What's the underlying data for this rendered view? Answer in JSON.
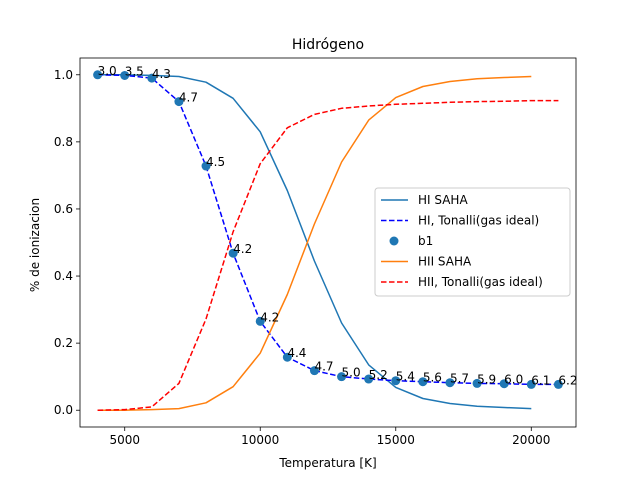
{
  "chart_data": {
    "type": "line",
    "title": "Hidrógeno",
    "xlabel": "Temperatura [K]",
    "ylabel": "% de ionizacion",
    "xlim": [
      3350,
      21650
    ],
    "ylim": [
      -0.05,
      1.05
    ],
    "xticks": [
      5000,
      10000,
      15000,
      20000
    ],
    "xtick_labels": [
      "5000",
      "10000",
      "15000",
      "20000"
    ],
    "yticks": [
      0.0,
      0.2,
      0.4,
      0.6,
      0.8,
      1.0
    ],
    "ytick_labels": [
      "0.0",
      "0.2",
      "0.4",
      "0.6",
      "0.8",
      "1.0"
    ],
    "grid": false,
    "legend_position": "center-right",
    "series": [
      {
        "name": "HI SAHA",
        "kind": "line",
        "color": "#1f77b4",
        "dash": "solid",
        "x": [
          4000,
          5000,
          6000,
          7000,
          8000,
          9000,
          10000,
          11000,
          12000,
          13000,
          14000,
          15000,
          16000,
          17000,
          18000,
          19000,
          20000
        ],
        "y": [
          1.0,
          1.0,
          0.998,
          0.995,
          0.978,
          0.93,
          0.83,
          0.655,
          0.445,
          0.26,
          0.135,
          0.068,
          0.035,
          0.02,
          0.012,
          0.008,
          0.005
        ]
      },
      {
        "name": "HI, Tonalli(gas ideal)",
        "kind": "line",
        "color": "#0000ff",
        "dash": "dashed",
        "x": [
          4000,
          5000,
          6000,
          7000,
          8000,
          9000,
          10000,
          11000,
          12000,
          13000,
          14000,
          15000,
          16000,
          17000,
          18000,
          19000,
          20000,
          21000
        ],
        "y": [
          1.0,
          0.998,
          0.99,
          0.92,
          0.728,
          0.468,
          0.265,
          0.158,
          0.118,
          0.1,
          0.093,
          0.088,
          0.085,
          0.082,
          0.08,
          0.079,
          0.077,
          0.077
        ]
      },
      {
        "name": "b1",
        "kind": "scatter",
        "color": "#1f77b4",
        "x": [
          4000,
          5000,
          6000,
          7000,
          8000,
          9000,
          10000,
          11000,
          12000,
          13000,
          14000,
          15000,
          16000,
          17000,
          18000,
          19000,
          20000,
          21000
        ],
        "y": [
          1.0,
          0.998,
          0.99,
          0.92,
          0.728,
          0.468,
          0.265,
          0.158,
          0.118,
          0.1,
          0.093,
          0.088,
          0.085,
          0.082,
          0.08,
          0.079,
          0.077,
          0.077
        ],
        "labels": [
          "3.0",
          "3.5",
          "4.3",
          "4.7",
          "4.5",
          "4.2",
          "4.2",
          "4.4",
          "4.7",
          "5.0",
          "5.2",
          "5.4",
          "5.6",
          "5.7",
          "5.9",
          "6.0",
          "6.1",
          "6.2"
        ]
      },
      {
        "name": "HII SAHA",
        "kind": "line",
        "color": "#ff7f0e",
        "dash": "solid",
        "x": [
          4000,
          5000,
          6000,
          7000,
          8000,
          9000,
          10000,
          11000,
          12000,
          13000,
          14000,
          15000,
          16000,
          17000,
          18000,
          19000,
          20000
        ],
        "y": [
          0.0,
          0.0,
          0.002,
          0.005,
          0.022,
          0.07,
          0.17,
          0.345,
          0.555,
          0.74,
          0.865,
          0.932,
          0.965,
          0.98,
          0.988,
          0.992,
          0.995
        ]
      },
      {
        "name": "HII, Tonalli(gas ideal)",
        "kind": "line",
        "color": "#ff0000",
        "dash": "dashed",
        "x": [
          4000,
          5000,
          6000,
          7000,
          8000,
          9000,
          10000,
          11000,
          12000,
          13000,
          14000,
          15000,
          16000,
          17000,
          18000,
          19000,
          20000,
          21000
        ],
        "y": [
          0.0,
          0.002,
          0.01,
          0.08,
          0.272,
          0.532,
          0.735,
          0.842,
          0.882,
          0.9,
          0.907,
          0.912,
          0.915,
          0.918,
          0.92,
          0.921,
          0.923,
          0.923
        ]
      }
    ]
  }
}
